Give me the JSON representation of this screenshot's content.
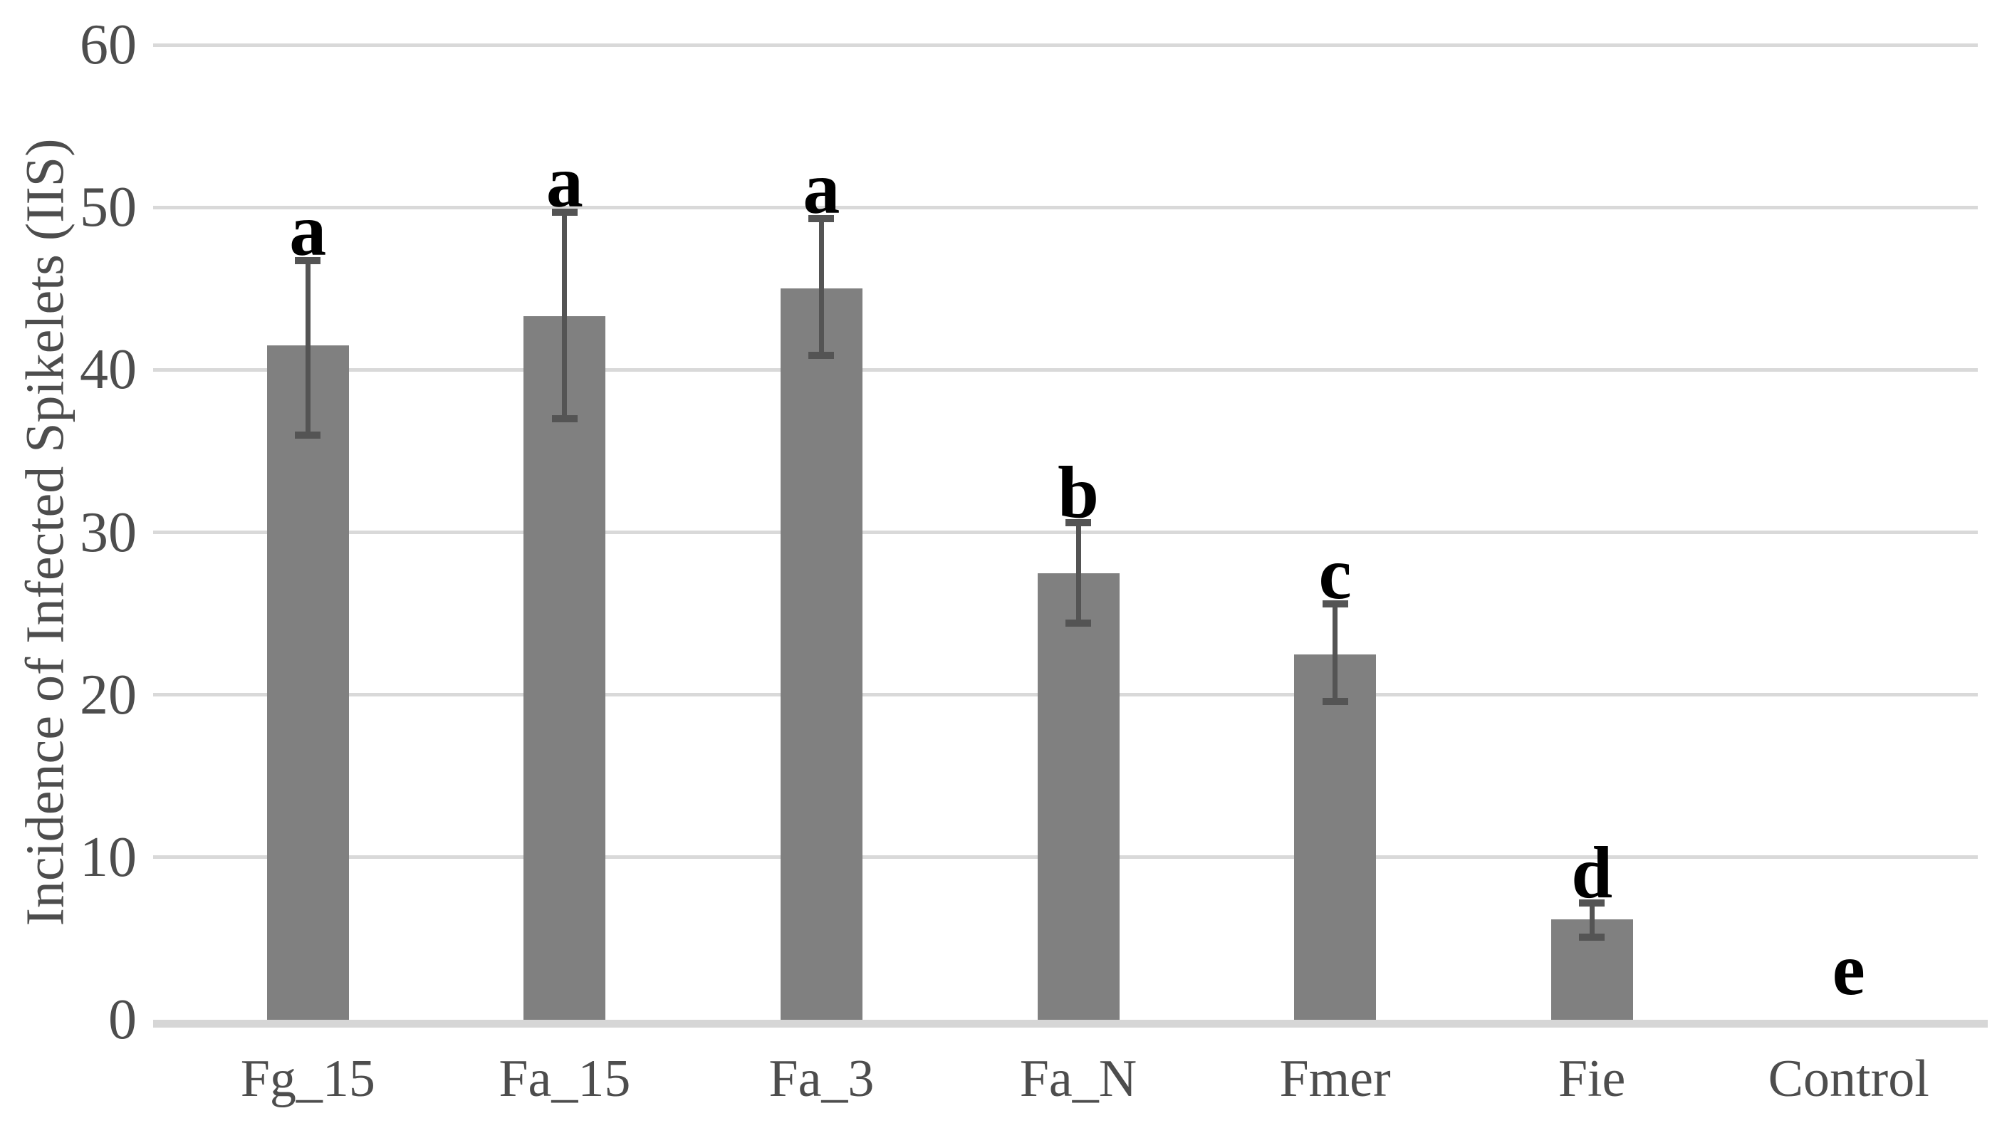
{
  "figure": {
    "background": "#ffffff"
  },
  "chart_data": {
    "type": "bar",
    "title": "",
    "xlabel": "",
    "ylabel": "Incidence of Infected Spikelets (IIS)",
    "ylim": [
      0,
      60
    ],
    "yticks": [
      0,
      10,
      20,
      30,
      40,
      50,
      60
    ],
    "grid": true,
    "legend": false,
    "categories": [
      "Fg_15",
      "Fa_15",
      "Fa_3",
      "Fa_N",
      "Fmer",
      "Fie",
      "Control"
    ],
    "values": [
      41.5,
      43.3,
      45.0,
      27.5,
      22.5,
      6.2,
      0
    ],
    "error_low": [
      36.0,
      37.0,
      40.9,
      24.4,
      19.6,
      5.1,
      null
    ],
    "error_high": [
      46.7,
      49.7,
      49.3,
      30.6,
      25.6,
      7.2,
      null
    ],
    "significance_letters": [
      "a",
      "a",
      "a",
      "b",
      "c",
      "d",
      "e"
    ],
    "colors": {
      "bar": "#808080",
      "error": "#545454",
      "gridline": "#d9d9d9",
      "axis_line": "#d6d6d6",
      "text": "#4d4d4d",
      "letter": "#000000"
    }
  }
}
